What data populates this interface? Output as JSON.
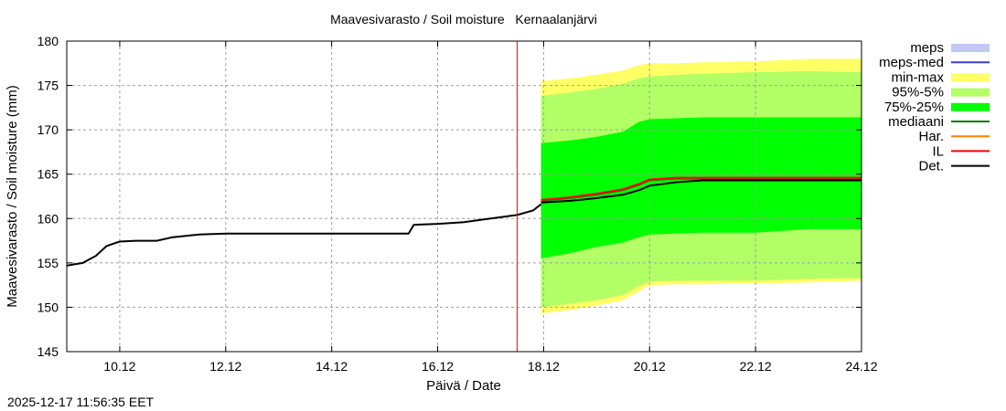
{
  "chart_data": {
    "type": "area",
    "title": "Maavesivarasto / Soil moisture   Kernaalanjärvi",
    "xlabel": "Päivä / Date",
    "ylabel": "Maavesivarasto / Soil moisture (mm)",
    "ylim": [
      145,
      180
    ],
    "xlim_days": [
      9.0,
      24.0
    ],
    "yticks": [
      145,
      150,
      155,
      160,
      165,
      170,
      175,
      180
    ],
    "xticks": [
      {
        "label": "10.12",
        "day": 10
      },
      {
        "label": "12.12",
        "day": 12
      },
      {
        "label": "14.12",
        "day": 14
      },
      {
        "label": "16.12",
        "day": 16
      },
      {
        "label": "18.12",
        "day": 18
      },
      {
        "label": "20.12",
        "day": 20
      },
      {
        "label": "22.12",
        "day": 22
      },
      {
        "label": "24.12",
        "day": 24
      }
    ],
    "grid": true,
    "legend_position": "right-top",
    "forecast_start_marker_day": 17.5,
    "legend": [
      {
        "label": "meps",
        "kind": "band",
        "color": "#c4c8f4"
      },
      {
        "label": "meps-med",
        "kind": "line",
        "color": "#3d3dd4"
      },
      {
        "label": "min-max",
        "kind": "band",
        "color": "#ffff66"
      },
      {
        "label": "95%-5%",
        "kind": "band",
        "color": "#b2ff66"
      },
      {
        "label": "75%-25%",
        "kind": "band",
        "color": "#00ff00"
      },
      {
        "label": "mediaani",
        "kind": "line",
        "color": "#007a00"
      },
      {
        "label": "Har.",
        "kind": "line",
        "color": "#ff8000"
      },
      {
        "label": "IL",
        "kind": "line",
        "color": "#ff0000"
      },
      {
        "label": "Det.",
        "kind": "line",
        "color": "#000000"
      }
    ],
    "observed": {
      "name": "Det.",
      "x": [
        9.0,
        9.3,
        9.55,
        9.75,
        10.0,
        10.3,
        10.7,
        11.0,
        11.5,
        12.0,
        13.0,
        14.0,
        15.0,
        15.45,
        15.55,
        16.0,
        16.5,
        17.0,
        17.5,
        17.8,
        17.95
      ],
      "y": [
        154.7,
        155.0,
        155.8,
        156.9,
        157.4,
        157.5,
        157.5,
        157.9,
        158.2,
        158.3,
        158.3,
        158.3,
        158.3,
        158.3,
        159.3,
        159.4,
        159.6,
        160.0,
        160.4,
        160.9,
        161.6
      ]
    },
    "forecast": {
      "x": [
        17.95,
        18.5,
        19.0,
        19.5,
        19.8,
        20.0,
        20.5,
        21.0,
        22.0,
        23.0,
        24.0
      ],
      "min_max": {
        "upper": [
          175.5,
          175.8,
          176.2,
          176.7,
          177.3,
          177.5,
          177.5,
          177.6,
          177.7,
          178.0,
          178.0
        ],
        "lower": [
          149.3,
          149.7,
          150.2,
          150.8,
          151.8,
          152.5,
          152.6,
          152.6,
          152.7,
          152.8,
          153.0
        ]
      },
      "p95_p5": {
        "upper": [
          173.8,
          174.2,
          174.6,
          175.2,
          175.8,
          176.0,
          176.2,
          176.3,
          176.5,
          176.6,
          176.5
        ],
        "lower": [
          150.0,
          150.4,
          150.8,
          151.4,
          152.4,
          152.9,
          153.0,
          153.0,
          153.0,
          153.2,
          153.3
        ]
      },
      "p75_p25": {
        "upper": [
          168.5,
          168.8,
          169.2,
          169.8,
          170.9,
          171.2,
          171.3,
          171.4,
          171.4,
          171.4,
          171.4
        ],
        "lower": [
          155.5,
          156.1,
          156.8,
          157.3,
          157.9,
          158.2,
          158.3,
          158.4,
          158.4,
          158.8,
          158.8
        ]
      },
      "lines": [
        {
          "name": "mediaani",
          "color": "#007a00",
          "y": [
            162.0,
            162.3,
            162.7,
            163.2,
            163.8,
            164.3,
            164.5,
            164.5,
            164.5,
            164.5,
            164.5
          ]
        },
        {
          "name": "Har.",
          "color": "#ff8000",
          "y": [
            162.1,
            162.4,
            162.8,
            163.3,
            163.9,
            164.4,
            164.6,
            164.6,
            164.6,
            164.6,
            164.6
          ]
        },
        {
          "name": "IL",
          "color": "#ff0000",
          "y": [
            162.1,
            162.4,
            162.8,
            163.3,
            163.9,
            164.4,
            164.6,
            164.6,
            164.6,
            164.6,
            164.6
          ]
        },
        {
          "name": "Det.",
          "color": "#000000",
          "y": [
            161.8,
            162.0,
            162.3,
            162.7,
            163.2,
            163.7,
            164.1,
            164.3,
            164.3,
            164.3,
            164.3
          ]
        }
      ]
    }
  },
  "footer": {
    "timestamp": "2025-12-17 11:56:35 EET"
  }
}
